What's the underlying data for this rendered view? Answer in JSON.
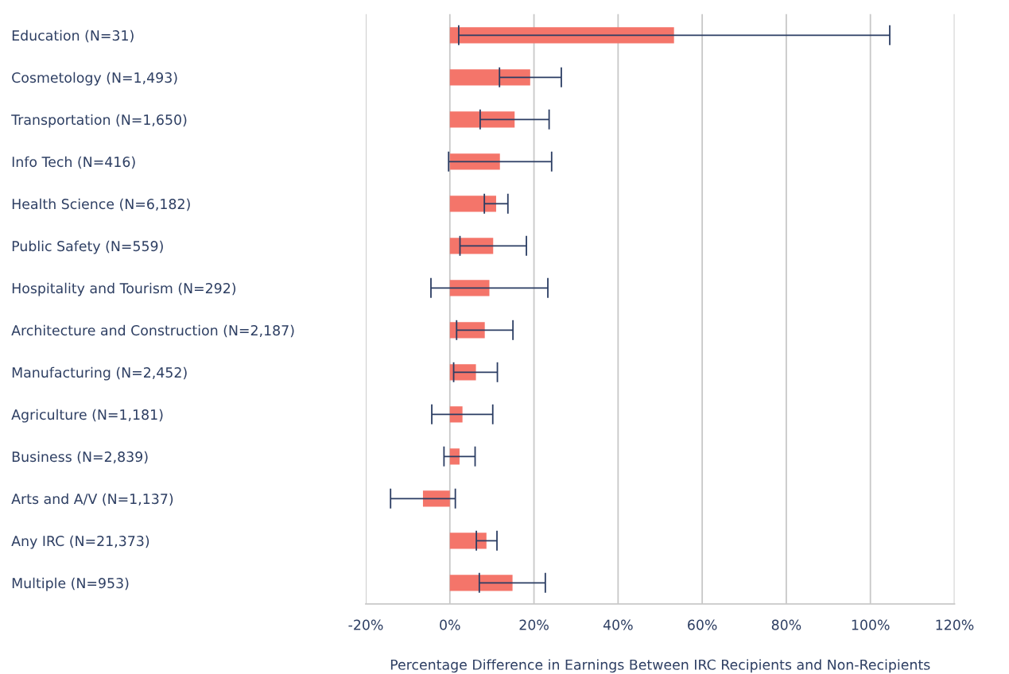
{
  "chart_data": {
    "type": "bar",
    "orientation": "horizontal",
    "xlabel": "Percentage Difference in Earnings Between IRC Recipients and Non-Recipients",
    "categories": [
      "Education (N=31)",
      "Cosmetology (N=1,493)",
      "Transportation (N=1,650)",
      "Info Tech (N=416)",
      "Health Science (N=6,182)",
      "Public Safety (N=559)",
      "Hospitality and Tourism (N=292)",
      "Architecture and Construction (N=2,187)",
      "Manufacturing (N=2,452)",
      "Agriculture (N=1,181)",
      "Business (N=2,839)",
      "Arts and A/V (N=1,137)",
      "Any IRC (N=21,373)",
      "Multiple (N=953)"
    ],
    "values": [
      53.3,
      19.1,
      15.4,
      11.9,
      11.0,
      10.3,
      9.4,
      8.3,
      6.2,
      3.0,
      2.3,
      -6.4,
      8.7,
      14.9
    ],
    "errors": [
      [
        2.1,
        104.6
      ],
      [
        11.8,
        26.5
      ],
      [
        7.2,
        23.6
      ],
      [
        -0.3,
        24.2
      ],
      [
        8.2,
        13.8
      ],
      [
        2.4,
        18.2
      ],
      [
        -4.5,
        23.3
      ],
      [
        1.6,
        15.0
      ],
      [
        0.9,
        11.3
      ],
      [
        -4.3,
        10.2
      ],
      [
        -1.4,
        6.0
      ],
      [
        -14.1,
        1.3
      ],
      [
        6.3,
        11.2
      ],
      [
        7.0,
        22.7
      ]
    ],
    "color": "#f4756a",
    "xlim": [
      -20,
      120
    ],
    "xticks": [
      {
        "value": -20,
        "label": "-20%"
      },
      {
        "value": 0,
        "label": "0%"
      },
      {
        "value": 20,
        "label": "20%"
      },
      {
        "value": 40,
        "label": "40%"
      },
      {
        "value": 60,
        "label": "60%"
      },
      {
        "value": 80,
        "label": "80%"
      },
      {
        "value": 100,
        "label": "100%"
      },
      {
        "value": 120,
        "label": "120%"
      }
    ],
    "grid": "x",
    "legend": false
  }
}
